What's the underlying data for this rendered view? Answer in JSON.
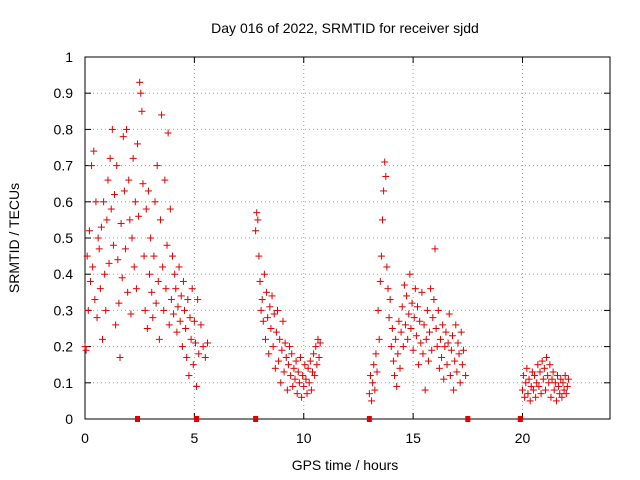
{
  "chart_data": {
    "type": "scatter",
    "title": "Day 016 of 2022, SRMTID for receiver sjdd",
    "xlabel": "GPS time / hours",
    "ylabel": "SRMTID / TECUs",
    "xlim": [
      0,
      24
    ],
    "ylim": [
      0,
      1
    ],
    "x_ticks": [
      "0",
      "5",
      "10",
      "15",
      "20"
    ],
    "y_ticks": [
      "0",
      "0.1",
      "0.2",
      "0.3",
      "0.4",
      "0.5",
      "0.6",
      "0.7",
      "0.8",
      "0.9",
      "1"
    ],
    "grid": true,
    "marker": "+",
    "color": "#e00000",
    "series": [
      {
        "name": "SRMTID",
        "points": [
          [
            0.0,
            0.2
          ],
          [
            0.05,
            0.19
          ],
          [
            0.1,
            0.45
          ],
          [
            0.15,
            0.3
          ],
          [
            0.2,
            0.52
          ],
          [
            0.25,
            0.38
          ],
          [
            0.3,
            0.7
          ],
          [
            0.35,
            0.42
          ],
          [
            0.4,
            0.74
          ],
          [
            0.45,
            0.33
          ],
          [
            0.5,
            0.6
          ],
          [
            0.55,
            0.28
          ],
          [
            0.6,
            0.5
          ],
          [
            0.65,
            0.47
          ],
          [
            0.7,
            0.36
          ],
          [
            0.75,
            0.53
          ],
          [
            0.8,
            0.22
          ],
          [
            0.85,
            0.6
          ],
          [
            0.9,
            0.4
          ],
          [
            0.95,
            0.3
          ],
          [
            1.0,
            0.55
          ],
          [
            1.05,
            0.66
          ],
          [
            1.1,
            0.43
          ],
          [
            1.15,
            0.72
          ],
          [
            1.2,
            0.58
          ],
          [
            1.25,
            0.8
          ],
          [
            1.3,
            0.48
          ],
          [
            1.35,
            0.62
          ],
          [
            1.4,
            0.26
          ],
          [
            1.45,
            0.7
          ],
          [
            1.5,
            0.44
          ],
          [
            1.55,
            0.32
          ],
          [
            1.6,
            0.17
          ],
          [
            1.65,
            0.54
          ],
          [
            1.7,
            0.39
          ],
          [
            1.75,
            0.78
          ],
          [
            1.8,
            0.63
          ],
          [
            1.85,
            0.47
          ],
          [
            1.9,
            0.8
          ],
          [
            1.95,
            0.35
          ],
          [
            2.0,
            0.66
          ],
          [
            2.05,
            0.55
          ],
          [
            2.1,
            0.29
          ],
          [
            2.15,
            0.5
          ],
          [
            2.2,
            0.72
          ],
          [
            2.25,
            0.42
          ],
          [
            2.3,
            0.6
          ],
          [
            2.35,
            0.36
          ],
          [
            2.4,
            0.76
          ],
          [
            2.45,
            0.56
          ],
          [
            2.5,
            0.93
          ],
          [
            2.55,
            0.9
          ],
          [
            2.6,
            0.85
          ],
          [
            2.65,
            0.65
          ],
          [
            2.7,
            0.45
          ],
          [
            2.75,
            0.3
          ],
          [
            2.8,
            0.58
          ],
          [
            2.85,
            0.25
          ],
          [
            2.9,
            0.63
          ],
          [
            2.95,
            0.4
          ],
          [
            3.0,
            0.5
          ],
          [
            3.05,
            0.35
          ],
          [
            3.1,
            0.28
          ],
          [
            3.15,
            0.45
          ],
          [
            3.2,
            0.6
          ],
          [
            3.25,
            0.32
          ],
          [
            3.3,
            0.7
          ],
          [
            3.35,
            0.38
          ],
          [
            3.4,
            0.22
          ],
          [
            3.45,
            0.55
          ],
          [
            3.5,
            0.84
          ],
          [
            3.55,
            0.42
          ],
          [
            3.6,
            0.3
          ],
          [
            3.65,
            0.66
          ],
          [
            3.7,
            0.36
          ],
          [
            3.75,
            0.48
          ],
          [
            3.8,
            0.79
          ],
          [
            3.85,
            0.26
          ],
          [
            3.9,
            0.58
          ],
          [
            3.95,
            0.33
          ],
          [
            4.0,
            0.45
          ],
          [
            4.05,
            0.29
          ],
          [
            4.1,
            0.4
          ],
          [
            4.15,
            0.36
          ],
          [
            4.2,
            0.24
          ],
          [
            4.25,
            0.31
          ],
          [
            4.3,
            0.42
          ],
          [
            4.35,
            0.27
          ],
          [
            4.4,
            0.34
          ],
          [
            4.45,
            0.2
          ],
          [
            4.5,
            0.38
          ],
          [
            4.55,
            0.3
          ],
          [
            4.6,
            0.25
          ],
          [
            4.65,
            0.17
          ],
          [
            4.7,
            0.33
          ],
          [
            4.75,
            0.12
          ],
          [
            4.8,
            0.28
          ],
          [
            4.85,
            0.22
          ],
          [
            4.9,
            0.36
          ],
          [
            4.95,
            0.15
          ],
          [
            5.0,
            0.27
          ],
          [
            5.05,
            0.21
          ],
          [
            5.1,
            0.09
          ],
          [
            5.15,
            0.33
          ],
          [
            5.2,
            0.18
          ],
          [
            5.3,
            0.26
          ],
          [
            5.4,
            0.2
          ],
          [
            5.5,
            0.17
          ],
          [
            5.6,
            0.21
          ],
          [
            7.8,
            0.52
          ],
          [
            7.85,
            0.57
          ],
          [
            7.9,
            0.55
          ],
          [
            7.95,
            0.45
          ],
          [
            8.0,
            0.38
          ],
          [
            8.05,
            0.3
          ],
          [
            8.1,
            0.33
          ],
          [
            8.15,
            0.27
          ],
          [
            8.2,
            0.4
          ],
          [
            8.25,
            0.22
          ],
          [
            8.3,
            0.35
          ],
          [
            8.35,
            0.28
          ],
          [
            8.4,
            0.18
          ],
          [
            8.45,
            0.31
          ],
          [
            8.5,
            0.25
          ],
          [
            8.55,
            0.34
          ],
          [
            8.6,
            0.2
          ],
          [
            8.65,
            0.29
          ],
          [
            8.7,
            0.14
          ],
          [
            8.75,
            0.24
          ],
          [
            8.8,
            0.3
          ],
          [
            8.85,
            0.16
          ],
          [
            8.9,
            0.22
          ],
          [
            8.95,
            0.1
          ],
          [
            9.0,
            0.19
          ],
          [
            9.05,
            0.27
          ],
          [
            9.1,
            0.13
          ],
          [
            9.15,
            0.21
          ],
          [
            9.2,
            0.17
          ],
          [
            9.25,
            0.08
          ],
          [
            9.3,
            0.15
          ],
          [
            9.35,
            0.2
          ],
          [
            9.4,
            0.12
          ],
          [
            9.45,
            0.18
          ],
          [
            9.5,
            0.09
          ],
          [
            9.55,
            0.14
          ],
          [
            9.6,
            0.11
          ],
          [
            9.65,
            0.16
          ],
          [
            9.7,
            0.07
          ],
          [
            9.75,
            0.13
          ],
          [
            9.8,
            0.1
          ],
          [
            9.85,
            0.17
          ],
          [
            9.9,
            0.06
          ],
          [
            9.95,
            0.12
          ],
          [
            10.0,
            0.09
          ],
          [
            10.05,
            0.15
          ],
          [
            10.1,
            0.11
          ],
          [
            10.15,
            0.07
          ],
          [
            10.2,
            0.14
          ],
          [
            10.25,
            0.1
          ],
          [
            10.3,
            0.16
          ],
          [
            10.35,
            0.08
          ],
          [
            10.4,
            0.13
          ],
          [
            10.45,
            0.18
          ],
          [
            10.5,
            0.12
          ],
          [
            10.55,
            0.2
          ],
          [
            10.6,
            0.15
          ],
          [
            10.65,
            0.22
          ],
          [
            10.7,
            0.17
          ],
          [
            10.75,
            0.21
          ],
          [
            13.0,
            0.07
          ],
          [
            13.05,
            0.12
          ],
          [
            13.1,
            0.05
          ],
          [
            13.15,
            0.1
          ],
          [
            13.2,
            0.15
          ],
          [
            13.25,
            0.08
          ],
          [
            13.3,
            0.18
          ],
          [
            13.35,
            0.13
          ],
          [
            13.4,
            0.3
          ],
          [
            13.45,
            0.22
          ],
          [
            13.5,
            0.38
          ],
          [
            13.55,
            0.45
          ],
          [
            13.6,
            0.55
          ],
          [
            13.65,
            0.63
          ],
          [
            13.7,
            0.71
          ],
          [
            13.75,
            0.67
          ],
          [
            13.8,
            0.42
          ],
          [
            13.85,
            0.36
          ],
          [
            13.9,
            0.28
          ],
          [
            13.95,
            0.33
          ],
          [
            14.0,
            0.2
          ],
          [
            14.05,
            0.25
          ],
          [
            14.1,
            0.16
          ],
          [
            14.15,
            0.12
          ],
          [
            14.2,
            0.22
          ],
          [
            14.25,
            0.09
          ],
          [
            14.3,
            0.18
          ],
          [
            14.35,
            0.27
          ],
          [
            14.4,
            0.14
          ],
          [
            14.45,
            0.24
          ],
          [
            14.5,
            0.31
          ],
          [
            14.55,
            0.2
          ],
          [
            14.6,
            0.37
          ],
          [
            14.65,
            0.26
          ],
          [
            14.7,
            0.34
          ],
          [
            14.75,
            0.22
          ],
          [
            14.8,
            0.29
          ],
          [
            14.85,
            0.4
          ],
          [
            14.9,
            0.25
          ],
          [
            14.95,
            0.32
          ],
          [
            15.0,
            0.19
          ],
          [
            15.05,
            0.28
          ],
          [
            15.1,
            0.36
          ],
          [
            15.15,
            0.23
          ],
          [
            15.2,
            0.31
          ],
          [
            15.25,
            0.15
          ],
          [
            15.3,
            0.27
          ],
          [
            15.35,
            0.21
          ],
          [
            15.4,
            0.35
          ],
          [
            15.45,
            0.18
          ],
          [
            15.5,
            0.26
          ],
          [
            15.55,
            0.08
          ],
          [
            15.6,
            0.22
          ],
          [
            15.65,
            0.3
          ],
          [
            15.7,
            0.16
          ],
          [
            15.75,
            0.24
          ],
          [
            15.8,
            0.36
          ],
          [
            15.85,
            0.19
          ],
          [
            15.9,
            0.28
          ],
          [
            15.95,
            0.33
          ],
          [
            16.0,
            0.47
          ],
          [
            16.05,
            0.25
          ],
          [
            16.1,
            0.2
          ],
          [
            16.15,
            0.3
          ],
          [
            16.2,
            0.14
          ],
          [
            16.25,
            0.22
          ],
          [
            16.3,
            0.17
          ],
          [
            16.35,
            0.26
          ],
          [
            16.4,
            0.11
          ],
          [
            16.45,
            0.2
          ],
          [
            16.5,
            0.24
          ],
          [
            16.55,
            0.15
          ],
          [
            16.6,
            0.21
          ],
          [
            16.65,
            0.29
          ],
          [
            16.7,
            0.12
          ],
          [
            16.75,
            0.19
          ],
          [
            16.8,
            0.23
          ],
          [
            16.85,
            0.08
          ],
          [
            16.9,
            0.16
          ],
          [
            16.95,
            0.26
          ],
          [
            17.0,
            0.13
          ],
          [
            17.05,
            0.21
          ],
          [
            17.1,
            0.18
          ],
          [
            17.15,
            0.1
          ],
          [
            17.2,
            0.24
          ],
          [
            17.25,
            0.15
          ],
          [
            17.3,
            0.19
          ],
          [
            17.4,
            0.12
          ],
          [
            20.0,
            0.08
          ],
          [
            20.05,
            0.12
          ],
          [
            20.1,
            0.06
          ],
          [
            20.15,
            0.1
          ],
          [
            20.2,
            0.14
          ],
          [
            20.25,
            0.07
          ],
          [
            20.3,
            0.11
          ],
          [
            20.35,
            0.05
          ],
          [
            20.4,
            0.09
          ],
          [
            20.45,
            0.13
          ],
          [
            20.5,
            0.08
          ],
          [
            20.55,
            0.12
          ],
          [
            20.6,
            0.06
          ],
          [
            20.65,
            0.1
          ],
          [
            20.7,
            0.15
          ],
          [
            20.75,
            0.09
          ],
          [
            20.8,
            0.13
          ],
          [
            20.85,
            0.07
          ],
          [
            20.9,
            0.16
          ],
          [
            20.95,
            0.11
          ],
          [
            21.0,
            0.14
          ],
          [
            21.05,
            0.08
          ],
          [
            21.1,
            0.17
          ],
          [
            21.15,
            0.12
          ],
          [
            21.2,
            0.1
          ],
          [
            21.25,
            0.15
          ],
          [
            21.3,
            0.06
          ],
          [
            21.35,
            0.11
          ],
          [
            21.4,
            0.13
          ],
          [
            21.45,
            0.08
          ],
          [
            21.5,
            0.1
          ],
          [
            21.55,
            0.05
          ],
          [
            21.6,
            0.12
          ],
          [
            21.65,
            0.09
          ],
          [
            21.7,
            0.07
          ],
          [
            21.75,
            0.11
          ],
          [
            21.8,
            0.06
          ],
          [
            21.85,
            0.1
          ],
          [
            21.9,
            0.08
          ],
          [
            21.95,
            0.12
          ],
          [
            22.0,
            0.07
          ],
          [
            22.05,
            0.09
          ],
          [
            22.1,
            0.11
          ]
        ]
      }
    ],
    "axis_markers_x": [
      2.4,
      5.1,
      7.8,
      13.0,
      17.5,
      19.9
    ]
  }
}
